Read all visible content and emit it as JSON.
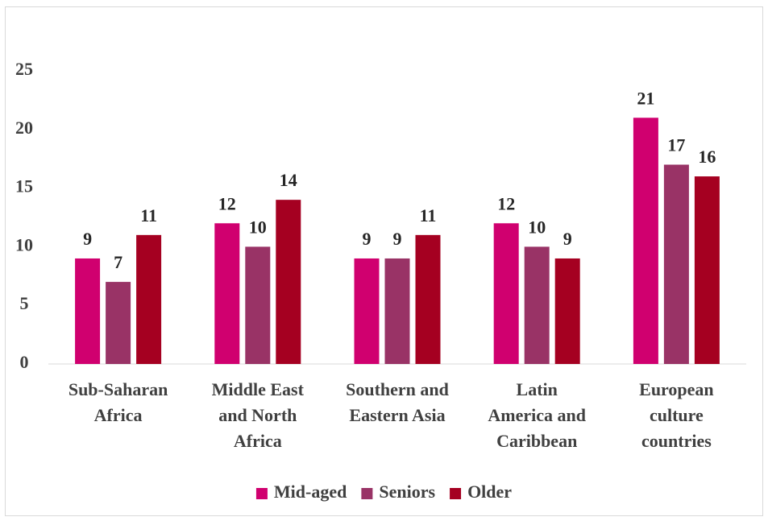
{
  "chart_data": {
    "type": "bar",
    "categories": [
      "Sub-Saharan Africa",
      "Middle East and North Africa",
      "Southern and Eastern Asia",
      "Latin America and Caribbean",
      "European culture countries"
    ],
    "series": [
      {
        "name": "Mid-aged",
        "color": "#d0006f",
        "values": [
          9,
          12,
          9,
          12,
          21
        ]
      },
      {
        "name": "Seniors",
        "color": "#993366",
        "values": [
          7,
          10,
          9,
          10,
          17
        ]
      },
      {
        "name": "Older",
        "color": "#a50021",
        "values": [
          11,
          14,
          11,
          9,
          16
        ]
      }
    ],
    "ylim": [
      0,
      25
    ],
    "yticks": [
      0,
      5,
      10,
      15,
      20,
      25
    ],
    "grid": false,
    "legend": "bottom"
  }
}
